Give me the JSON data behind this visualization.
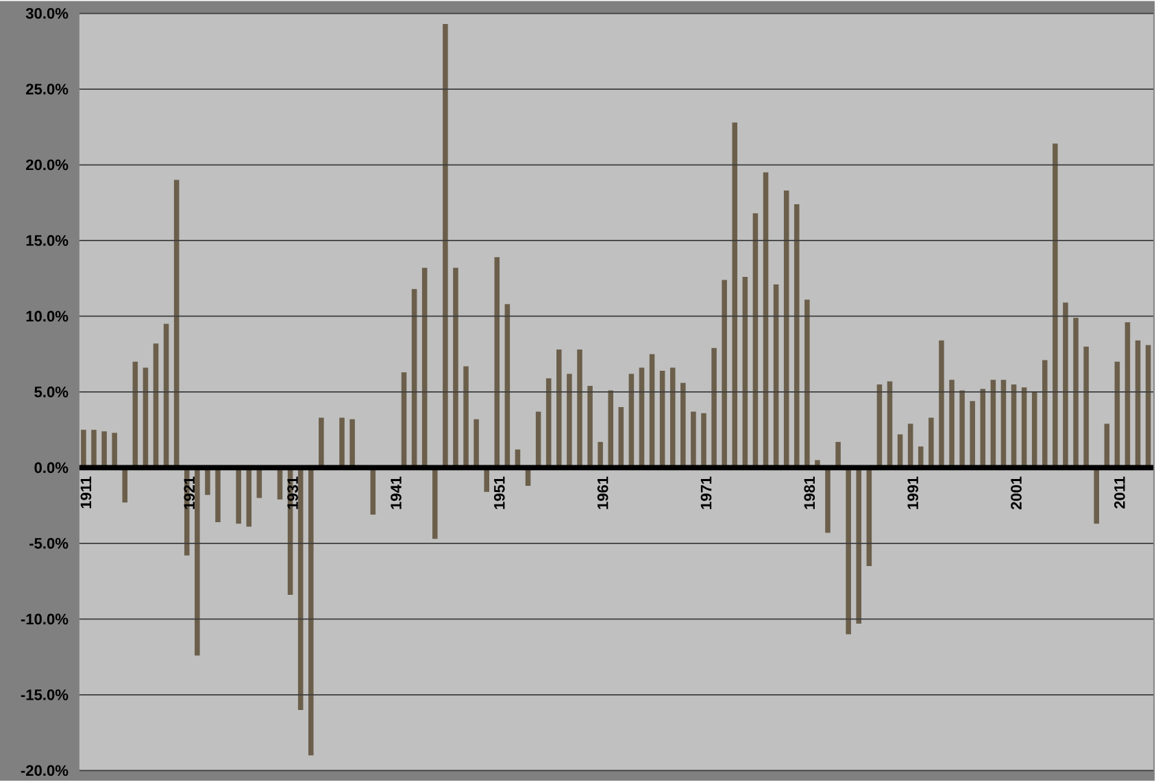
{
  "chart_data": {
    "type": "bar",
    "categories": [
      "1911",
      null,
      null,
      null,
      null,
      null,
      null,
      null,
      null,
      null,
      "1921",
      null,
      null,
      null,
      null,
      null,
      null,
      null,
      null,
      null,
      "1931",
      null,
      null,
      null,
      null,
      null,
      null,
      null,
      null,
      null,
      "1941",
      null,
      null,
      null,
      null,
      null,
      null,
      null,
      null,
      null,
      "1951",
      null,
      null,
      null,
      null,
      null,
      null,
      null,
      null,
      null,
      "1961",
      null,
      null,
      null,
      null,
      null,
      null,
      null,
      null,
      null,
      "1971",
      null,
      null,
      null,
      null,
      null,
      null,
      null,
      null,
      null,
      "1981",
      null,
      null,
      null,
      null,
      null,
      null,
      null,
      null,
      null,
      "1991",
      null,
      null,
      null,
      null,
      null,
      null,
      null,
      null,
      null,
      "2001",
      null,
      null,
      null,
      null,
      null,
      null,
      null,
      null,
      null,
      "2011",
      null,
      null,
      null
    ],
    "values": [
      2.5,
      2.5,
      2.4,
      2.3,
      -2.3,
      7.0,
      6.6,
      8.2,
      9.5,
      19.0,
      -5.8,
      -12.4,
      -1.8,
      -3.6,
      0,
      -3.7,
      -3.9,
      -2.0,
      0,
      -2.1,
      -8.4,
      -16.0,
      -19.0,
      3.3,
      0,
      3.3,
      3.2,
      0,
      -3.1,
      0,
      0,
      6.3,
      11.8,
      13.2,
      -4.7,
      29.3,
      13.2,
      6.7,
      3.2,
      -1.6,
      13.9,
      10.8,
      1.2,
      -1.2,
      3.7,
      5.9,
      7.8,
      6.2,
      7.8,
      5.4,
      1.7,
      5.1,
      4.0,
      6.2,
      6.6,
      7.5,
      6.4,
      6.6,
      5.6,
      3.7,
      3.6,
      7.9,
      12.4,
      22.8,
      12.6,
      16.8,
      19.5,
      12.1,
      18.3,
      17.4,
      11.1,
      0.5,
      -4.3,
      1.7,
      -11.0,
      -10.3,
      -6.5,
      5.5,
      5.7,
      2.2,
      2.9,
      1.4,
      3.3,
      8.4,
      5.8,
      5.1,
      4.4,
      5.2,
      5.8,
      5.8,
      5.5,
      5.3,
      5.0,
      7.1,
      21.4,
      10.9,
      9.9,
      8.0,
      -3.7,
      2.9,
      7.0,
      9.6,
      8.4,
      8.1
    ],
    "color": "#6b5f4b",
    "ylim": [
      -20,
      30
    ],
    "yticks": [
      {
        "value": -20,
        "label": "-20.0%"
      },
      {
        "value": -15,
        "label": "-15.0%"
      },
      {
        "value": -10,
        "label": "-10.0%"
      },
      {
        "value": -5,
        "label": "-5.0%"
      },
      {
        "value": 0,
        "label": "0.0%"
      },
      {
        "value": 5,
        "label": "5.0%"
      },
      {
        "value": 10,
        "label": "10.0%"
      },
      {
        "value": 15,
        "label": "15.0%"
      },
      {
        "value": 20,
        "label": "20.0%"
      },
      {
        "value": 25,
        "label": "25.0%"
      },
      {
        "value": 30,
        "label": "30.0%"
      }
    ],
    "grid": "y"
  }
}
